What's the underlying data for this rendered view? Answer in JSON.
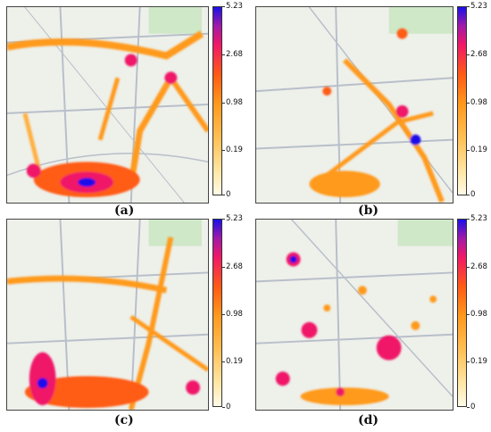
{
  "figure": {
    "panels": [
      {
        "id": "a",
        "caption": "(a)"
      },
      {
        "id": "b",
        "caption": "(b)"
      },
      {
        "id": "c",
        "caption": "(c)"
      },
      {
        "id": "d",
        "caption": "(d)"
      }
    ],
    "colorbar": {
      "ticks": [
        "5.23",
        "2.68",
        "0.98",
        "0.19",
        "0"
      ],
      "colors": [
        "#fffbe8",
        "#ffc055",
        "#ff9a1e",
        "#ff5b14",
        "#f01868",
        "#a01aa8",
        "#1a10e8"
      ]
    },
    "map_colors": {
      "background": "#eef0ea",
      "road": "#b8bfca",
      "park": "#cfe8c8",
      "water": "#a9c9ef"
    }
  }
}
